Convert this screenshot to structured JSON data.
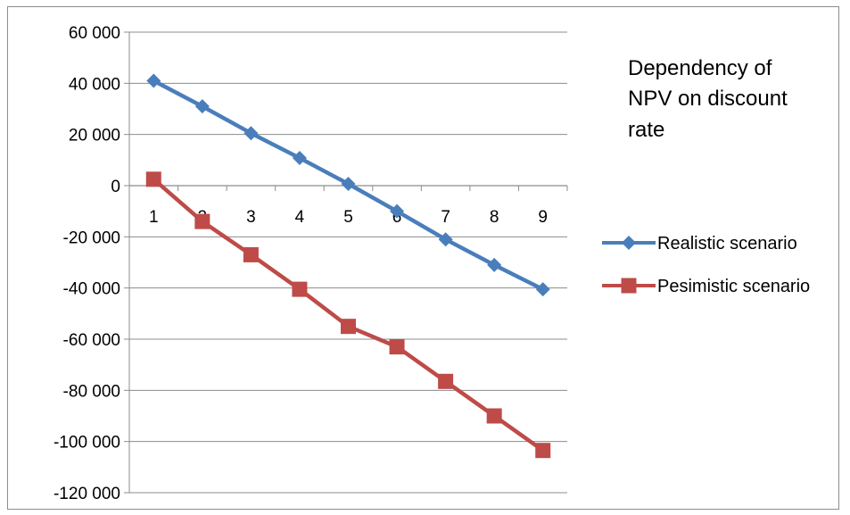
{
  "chart_data": {
    "type": "line",
    "title_lines": [
      "Dependency of",
      "NPV on discount",
      "rate"
    ],
    "categories": [
      "1",
      "2",
      "3",
      "4",
      "5",
      "6",
      "7",
      "8",
      "9"
    ],
    "y_ticks": [
      "60 000",
      "40 000",
      "20 000",
      "0",
      "-20 000",
      "-40 000",
      "-60 000",
      "-80 000",
      "-100 000",
      "-120 000"
    ],
    "ylim": [
      -120000,
      60000
    ],
    "grid": true,
    "legend_position": "right",
    "series": [
      {
        "name": "Realistic scenario",
        "color": "#4a7ebb",
        "marker": "diamond",
        "values": [
          41000,
          31000,
          20500,
          10800,
          700,
          -10000,
          -21000,
          -31000,
          -40500
        ]
      },
      {
        "name": "Pesimistic scenario",
        "color": "#be4b48",
        "marker": "square",
        "values": [
          2500,
          -14000,
          -27000,
          -40500,
          -55000,
          -63000,
          -76500,
          -90000,
          -103500
        ]
      }
    ]
  }
}
